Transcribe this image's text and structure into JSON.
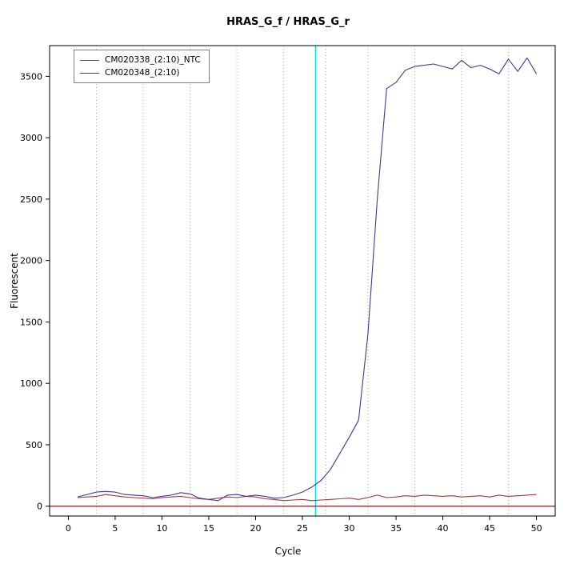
{
  "title": "HRAS_G_f / HRAS_G_r",
  "chart_data": {
    "type": "line",
    "title": "HRAS_G_f / HRAS_G_r",
    "xlabel": "Cycle",
    "ylabel": "Fluorescent",
    "xlim": [
      -2,
      52
    ],
    "ylim": [
      -80,
      3750
    ],
    "xticks": [
      0,
      5,
      10,
      15,
      20,
      25,
      30,
      35,
      40,
      45,
      50
    ],
    "yticks": [
      0,
      500,
      1000,
      1500,
      2000,
      2500,
      3000,
      3500
    ],
    "grid": "dotted vertical",
    "legend_position": "top-left",
    "x": [
      1,
      2,
      3,
      4,
      5,
      6,
      7,
      8,
      9,
      10,
      11,
      12,
      13,
      14,
      15,
      16,
      17,
      18,
      19,
      20,
      21,
      22,
      23,
      24,
      25,
      26,
      27,
      28,
      29,
      30,
      31,
      32,
      33,
      34,
      35,
      36,
      37,
      38,
      39,
      40,
      41,
      42,
      43,
      44,
      45,
      46,
      47,
      48,
      49,
      50
    ],
    "series": [
      {
        "name": "CM020338_(2:10)_NTC",
        "color": "#a03a3a",
        "values": [
          70,
          75,
          80,
          95,
          85,
          75,
          70,
          65,
          60,
          70,
          75,
          80,
          70,
          60,
          55,
          65,
          75,
          70,
          80,
          75,
          60,
          55,
          45,
          50,
          55,
          45,
          50,
          55,
          60,
          65,
          55,
          70,
          90,
          70,
          75,
          85,
          80,
          90,
          85,
          80,
          85,
          75,
          80,
          85,
          75,
          90,
          80,
          85,
          90,
          95
        ]
      },
      {
        "name": "CM020348_(2:10)",
        "color": "#3a3a9e",
        "values": [
          75,
          95,
          115,
          120,
          115,
          95,
          90,
          85,
          70,
          80,
          90,
          110,
          100,
          65,
          55,
          45,
          90,
          95,
          80,
          90,
          80,
          65,
          70,
          90,
          115,
          155,
          210,
          300,
          430,
          560,
          700,
          1400,
          2500,
          3400,
          3450,
          3550,
          3580,
          3590,
          3600,
          3580,
          3560,
          3630,
          3570,
          3590,
          3560,
          3520,
          3640,
          3540,
          3650,
          3520
        ]
      }
    ],
    "threshold_line": {
      "x": 26.4,
      "color": "#00e0e0"
    },
    "baseline": {
      "y": 0,
      "color": "#8b1a1a"
    },
    "grid_vlines": {
      "x": [
        3,
        8,
        13,
        18,
        23,
        27.5,
        32,
        37,
        42,
        47
      ],
      "color": "#cfa0a0"
    }
  }
}
